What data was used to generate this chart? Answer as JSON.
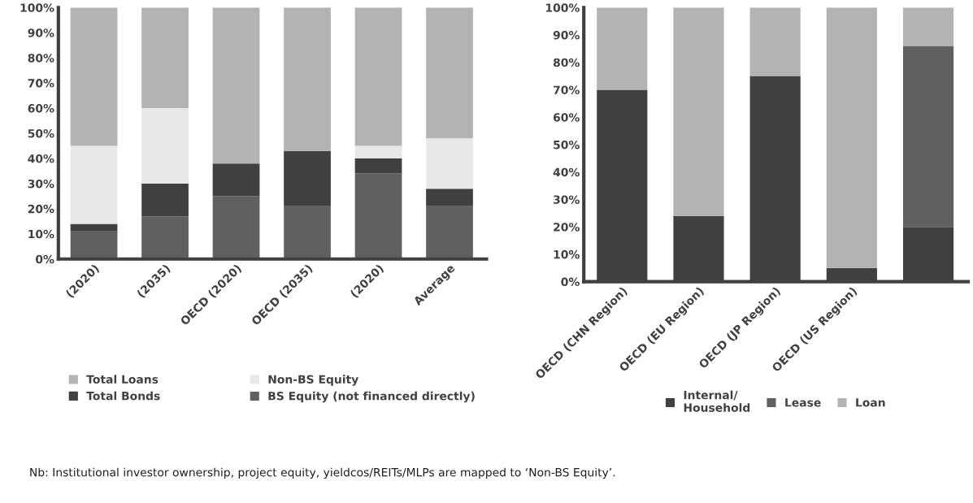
{
  "chart_data": [
    {
      "type": "bar",
      "stacked": true,
      "categories": [
        "(2020)",
        "(2035)",
        "OECD (2020)",
        "OECD (2035)",
        "(2020)",
        "Average"
      ],
      "ylim": [
        0,
        100
      ],
      "yticks": [
        {
          "value": 0,
          "label": "0%"
        },
        {
          "value": 10,
          "label": "10%"
        },
        {
          "value": 20,
          "label": "20%"
        },
        {
          "value": 30,
          "label": "30%"
        },
        {
          "value": 40,
          "label": "40%"
        },
        {
          "value": 50,
          "label": "50%"
        },
        {
          "value": 60,
          "label": "60%"
        },
        {
          "value": 70,
          "label": "70%"
        },
        {
          "value": 80,
          "label": "80%"
        },
        {
          "value": 90,
          "label": "90%"
        },
        {
          "value": 100,
          "label": "100%"
        }
      ],
      "grid": false,
      "legend": "bottom",
      "series": [
        {
          "name": "BS Equity (not financed directly)",
          "color": "#606060",
          "values": [
            11,
            17,
            25,
            21,
            34,
            21
          ]
        },
        {
          "name": "Total Bonds",
          "color": "#404040",
          "values": [
            3,
            13,
            13,
            22,
            6,
            7
          ]
        },
        {
          "name": "Non-BS Equity",
          "color": "#e8e8e8",
          "values": [
            31,
            30,
            0,
            0,
            5,
            20
          ]
        },
        {
          "name": "Total Loans",
          "color": "#b3b3b3",
          "values": [
            55,
            40,
            62,
            57,
            55,
            52
          ]
        }
      ],
      "annotations": [
        "Nb: Institutional investor ownership, project equity, yieldcos/REITs/MLPs are mapped to ‘Non-BS Equity’."
      ]
    },
    {
      "type": "bar",
      "stacked": true,
      "categories": [
        "OECD (CHN Region)",
        "OECD (EU Region)",
        "OECD (JP Region)",
        "OECD (US Region)",
        null
      ],
      "ylim": [
        0,
        100
      ],
      "yticks": [
        {
          "value": 0,
          "label": "0%"
        },
        {
          "value": 10,
          "label": "10%"
        },
        {
          "value": 20,
          "label": "20%"
        },
        {
          "value": 30,
          "label": "30%"
        },
        {
          "value": 40,
          "label": "40%"
        },
        {
          "value": 50,
          "label": "50%"
        },
        {
          "value": 60,
          "label": "60%"
        },
        {
          "value": 70,
          "label": "70%"
        },
        {
          "value": 80,
          "label": "80%"
        },
        {
          "value": 90,
          "label": "90%"
        },
        {
          "value": 100,
          "label": "100%"
        }
      ],
      "grid": false,
      "legend": "bottom",
      "series": [
        {
          "name": "Internal/\nHousehold",
          "color": "#404040",
          "values": [
            70,
            24,
            75,
            5,
            20
          ]
        },
        {
          "name": "Lease",
          "color": "#606060",
          "values": [
            0,
            0,
            0,
            0,
            66
          ]
        },
        {
          "name": "Loan",
          "color": "#b3b3b3",
          "values": [
            30,
            76,
            25,
            95,
            14
          ]
        }
      ]
    }
  ]
}
